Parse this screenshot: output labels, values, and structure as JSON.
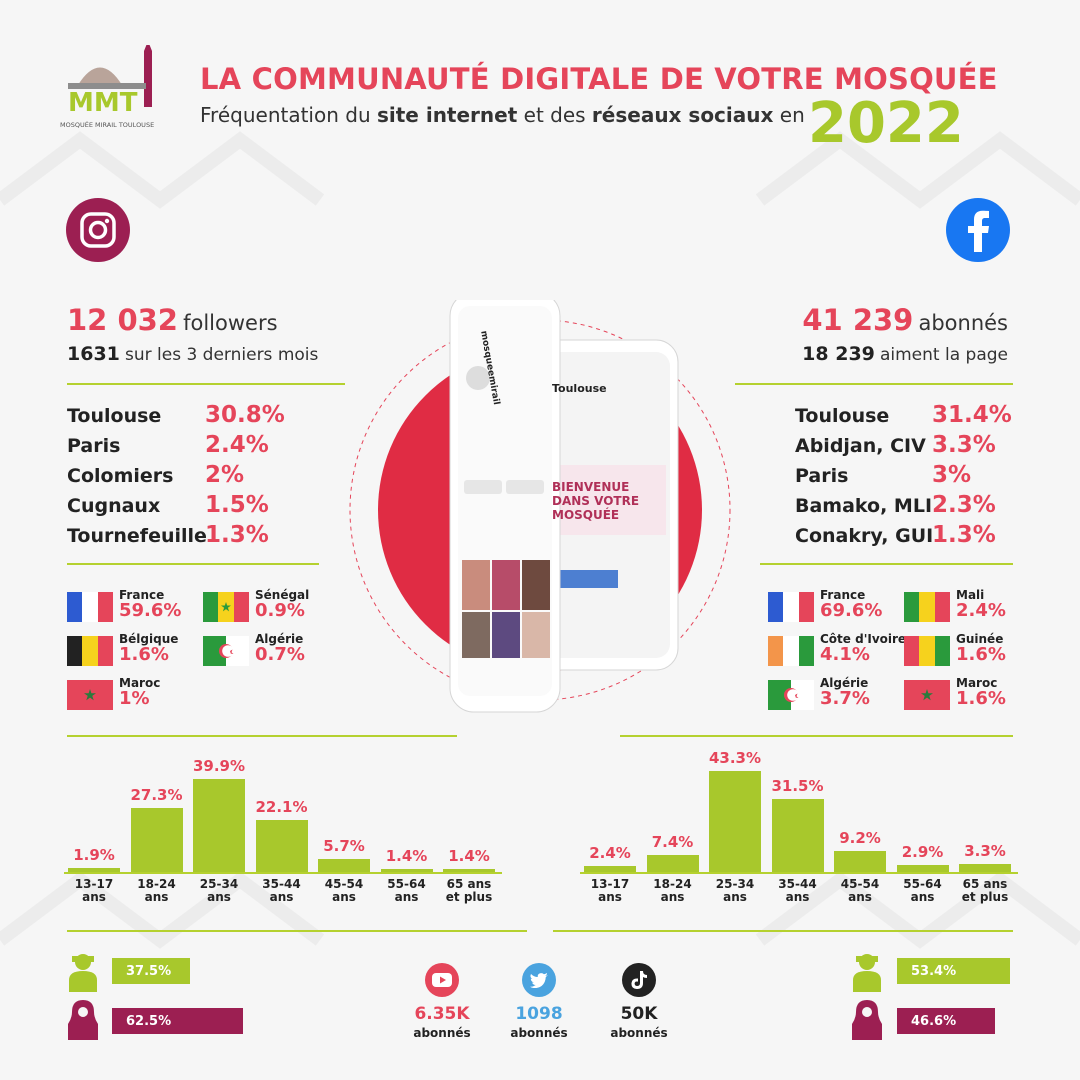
{
  "header": {
    "logo_text": "MOSQUÉE MIRAIL TOULOUSE",
    "logo_letters": "MMT",
    "title": "LA COMMUNAUTÉ DIGITALE DE VOTRE MOSQUÉE",
    "subtitle_part1": "Fréquentation du ",
    "subtitle_bold1": "site internet",
    "subtitle_part2": " et des ",
    "subtitle_bold2": "réseaux sociaux",
    "subtitle_part3": " en",
    "year": "2022"
  },
  "instagram": {
    "icon": "instagram-icon",
    "followers_value": "12 032",
    "followers_label": "followers",
    "recent_value": "1631",
    "recent_label": "sur les 3 derniers mois",
    "cities": [
      {
        "name": "Toulouse",
        "pct": "30.8%"
      },
      {
        "name": "Paris",
        "pct": "2.4%"
      },
      {
        "name": "Colomiers",
        "pct": "2%"
      },
      {
        "name": "Cugnaux",
        "pct": "1.5%"
      },
      {
        "name": "Tournefeuille",
        "pct": "1.3%"
      }
    ],
    "countries": [
      {
        "name": "France",
        "pct": "59.6%",
        "flag": "france"
      },
      {
        "name": "Sénégal",
        "pct": "0.9%",
        "flag": "senegal"
      },
      {
        "name": "Bélgique",
        "pct": "1.6%",
        "flag": "belgium"
      },
      {
        "name": "Algérie",
        "pct": "0.7%",
        "flag": "algeria"
      },
      {
        "name": "Maroc",
        "pct": "1%",
        "flag": "morocco"
      }
    ],
    "gender": {
      "male": "37.5%",
      "female": "62.5%"
    }
  },
  "facebook": {
    "icon": "facebook-icon",
    "followers_value": "41 239",
    "followers_label": "abonnés",
    "likes_value": "18 239",
    "likes_label": "aiment la page",
    "cities": [
      {
        "name": "Toulouse",
        "pct": "31.4%"
      },
      {
        "name": "Abidjan, CIV",
        "pct": "3.3%"
      },
      {
        "name": "Paris",
        "pct": "3%"
      },
      {
        "name": "Bamako, MLI",
        "pct": "2.3%"
      },
      {
        "name": "Conakry, GUI",
        "pct": "1.3%"
      }
    ],
    "countries": [
      {
        "name": "France",
        "pct": "69.6%",
        "flag": "france"
      },
      {
        "name": "Mali",
        "pct": "2.4%",
        "flag": "mali"
      },
      {
        "name": "Côte d'Ivoire",
        "pct": "4.1%",
        "flag": "ivorycoast"
      },
      {
        "name": "Guinée",
        "pct": "1.6%",
        "flag": "guinea"
      },
      {
        "name": "Algérie",
        "pct": "3.7%",
        "flag": "algeria"
      },
      {
        "name": "Maroc",
        "pct": "1.6%",
        "flag": "morocco"
      }
    ],
    "gender": {
      "male": "53.4%",
      "female": "46.6%"
    }
  },
  "phone": {
    "instagram_handle": "mosqueemirail",
    "facebook_page": "Toulouse",
    "welcome_text": "BIENVENUE DANS VOTRE MOSQUÉE"
  },
  "social": [
    {
      "icon": "youtube-icon",
      "value": "6.35K",
      "label": "abonnés",
      "color": "#e5455a"
    },
    {
      "icon": "twitter-icon",
      "value": "1098",
      "label": "abonnés",
      "color": "#4aa3df"
    },
    {
      "icon": "tiktok-icon",
      "value": "50K",
      "label": "abonnés",
      "color": "#222222"
    }
  ],
  "colors": {
    "accent": "#e5455a",
    "green": "#a8c82c",
    "purple": "#9c1f52",
    "instagram": "#9c1f52",
    "facebook": "#1877f2"
  },
  "chart_data": [
    {
      "type": "bar",
      "title": "",
      "categories": [
        "13-17\nans",
        "18-24\nans",
        "25-34\nans",
        "35-44\nans",
        "45-54\nans",
        "55-64\nans",
        "65 ans\net plus"
      ],
      "values": [
        1.9,
        27.3,
        39.9,
        22.1,
        5.7,
        1.4,
        1.4
      ],
      "labels": [
        "1.9%",
        "27.3%",
        "39.9%",
        "22.1%",
        "5.7%",
        "1.4%",
        "1.4%"
      ],
      "ylim": [
        0,
        45
      ]
    },
    {
      "type": "bar",
      "title": "",
      "categories": [
        "13-17\nans",
        "18-24\nans",
        "25-34\nans",
        "35-44\nans",
        "45-54\nans",
        "55-64\nans",
        "65 ans\net plus"
      ],
      "values": [
        2.4,
        7.4,
        43.3,
        31.5,
        9.2,
        2.9,
        3.3
      ],
      "labels": [
        "2.4%",
        "7.4%",
        "43.3%",
        "31.5%",
        "9.2%",
        "2.9%",
        "3.3%"
      ],
      "ylim": [
        0,
        45
      ]
    }
  ]
}
